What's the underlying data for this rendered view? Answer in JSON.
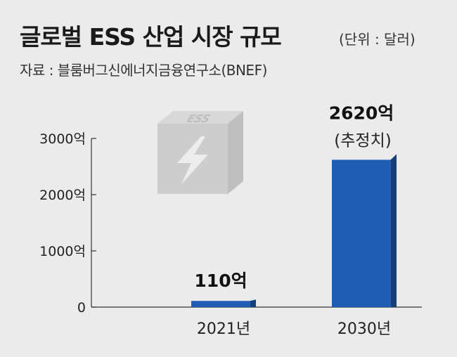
{
  "title": "글로벌 ESS 산업 시장 규모",
  "unit": "(단위 : 달러)",
  "source": "자료 : 블룸버그신에너지금융연구소(BNEF)",
  "cube_label": "ESS",
  "colors": {
    "bar_front": "#1f5db4",
    "bar_side": "#163f7a",
    "cube": "#d0d0d0",
    "background": "#ebebeb"
  },
  "chart_data": {
    "type": "bar",
    "categories": [
      "2021년",
      "2030년"
    ],
    "values": [
      110,
      2620
    ],
    "data_labels": [
      "110억",
      "2620억"
    ],
    "annotations": [
      "(추정치)"
    ],
    "y_tick_values": [
      0,
      1000,
      2000,
      3000
    ],
    "y_tick_labels": [
      "0",
      "1000억",
      "2000억",
      "3000억"
    ],
    "ylim": [
      0,
      3000
    ],
    "title": "글로벌 ESS 산업 시장 규모",
    "xlabel": "",
    "ylabel": "",
    "grid": false
  }
}
